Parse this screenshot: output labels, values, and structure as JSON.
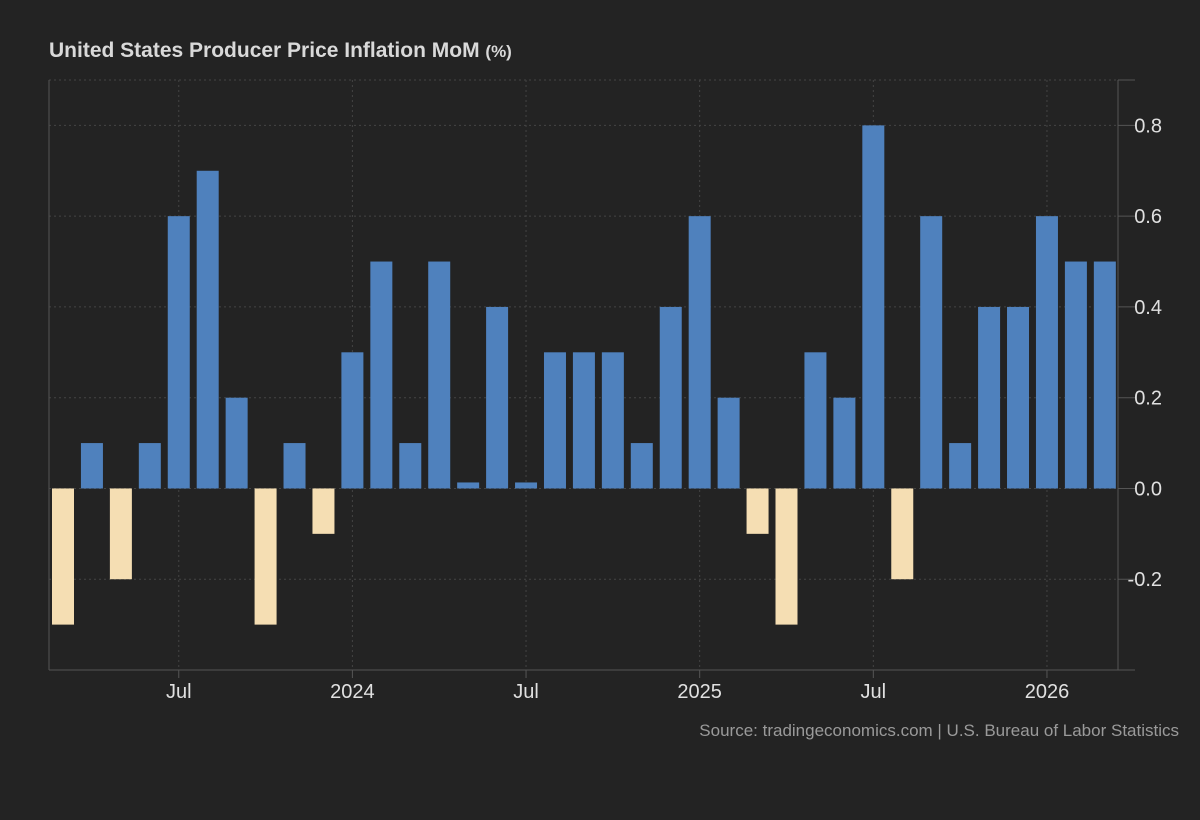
{
  "chart_data": {
    "type": "bar",
    "title": "United States Producer Price Inflation MoM",
    "unit": "(%)",
    "categories": [
      "2023-03",
      "2023-04",
      "2023-05",
      "2023-06",
      "2023-07",
      "2023-08",
      "2023-09",
      "2023-10",
      "2023-11",
      "2023-12",
      "2024-01",
      "2024-02",
      "2024-03",
      "2024-04",
      "2024-05",
      "2024-06",
      "2024-07",
      "2024-08",
      "2024-09",
      "2024-10",
      "2024-11",
      "2024-12",
      "2025-01",
      "2025-02",
      "2025-03",
      "2025-04",
      "2025-05",
      "2025-06",
      "2025-07",
      "2025-08",
      "2025-09",
      "2025-10",
      "2025-11",
      "2025-12",
      "2026-01",
      "2026-02",
      "2026-03"
    ],
    "values": [
      -0.3,
      0.1,
      -0.2,
      0.1,
      0.6,
      0.7,
      0.2,
      -0.3,
      0.1,
      -0.1,
      0.3,
      0.5,
      0.1,
      0.5,
      0.0,
      0.4,
      0.0,
      0.3,
      0.3,
      0.3,
      0.1,
      0.4,
      0.6,
      0.2,
      -0.1,
      -0.3,
      0.3,
      0.2,
      0.8,
      -0.2,
      0.6,
      0.1,
      0.4,
      0.4,
      0.6,
      0.5,
      0.5
    ],
    "x_ticks": [
      {
        "label": "Jul",
        "at": "2023-07"
      },
      {
        "label": "2024",
        "at": "2024-01"
      },
      {
        "label": "Jul",
        "at": "2024-07"
      },
      {
        "label": "2025",
        "at": "2025-01"
      },
      {
        "label": "Jul",
        "at": "2025-07"
      },
      {
        "label": "2026",
        "at": "2026-01"
      }
    ],
    "y_ticks": [
      "0.8",
      "0.6",
      "0.4",
      "0.2",
      "0.0",
      "-0.2"
    ],
    "ylim": [
      -0.4,
      0.9
    ],
    "y_axis_position": "right",
    "grid": true,
    "colors": {
      "positive": "#4f81bd",
      "negative": "#f5deb3",
      "background": "#232323",
      "grid": "#444444",
      "text": "#e0e0e0"
    },
    "xlabel": "",
    "ylabel": ""
  },
  "source": "Source: tradingeconomics.com | U.S. Bureau of Labor Statistics"
}
